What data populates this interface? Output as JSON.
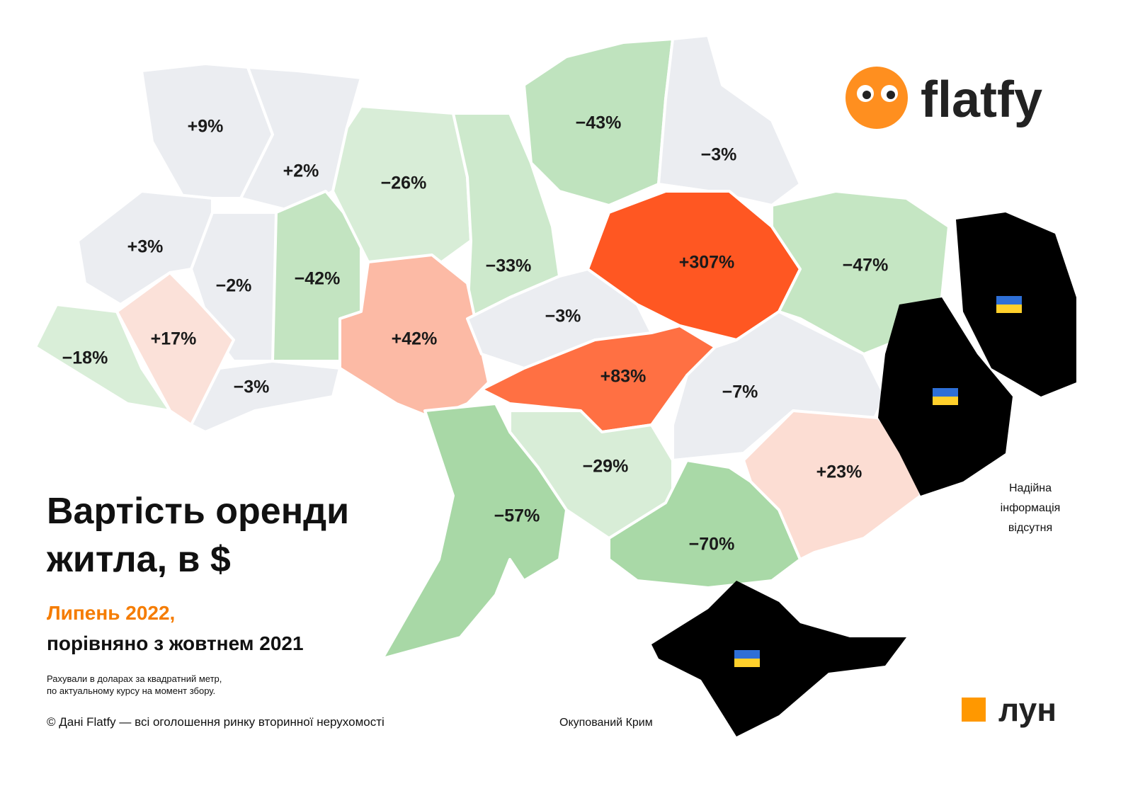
{
  "map": {
    "title_lines": [
      "Вартість оренди",
      "житла, в $"
    ],
    "subtitle_lines": [
      "Липень 2022,",
      "порівняно з жовтнем 2021"
    ],
    "note_lines": [
      "Рахували в доларах за квадратний метр,",
      "по актуальному курсу на момент збору."
    ],
    "source": "© Дані Flatfy — всі оголошення ринку вторинної нерухомості",
    "crimea_label": "Окупований Крим",
    "no_data_lines": [
      "Надійна",
      "інформація",
      "відсутня"
    ],
    "logo_flatfy": "flatfy",
    "logo_lun": "лун",
    "regions": [
      {
        "label": "+9%",
        "color": "#ebedf1"
      },
      {
        "label": "+2%",
        "color": "#ebedf1"
      },
      {
        "label": "+3%",
        "color": "#ebedf1"
      },
      {
        "label": "−2%",
        "color": "#ebedf1"
      },
      {
        "label": "−42%",
        "color": "#c3e4c1"
      },
      {
        "label": "−18%",
        "color": "#d9eed8"
      },
      {
        "label": "+17%",
        "color": "#fbe1d9"
      },
      {
        "label": "−3%",
        "color": "#ebedf1"
      },
      {
        "label": "−26%",
        "color": "#d8edd7"
      },
      {
        "label": "−33%",
        "color": "#cde9cc"
      },
      {
        "label": "−43%",
        "color": "#bfe3be"
      },
      {
        "label": "−3%",
        "color": "#ebedf1"
      },
      {
        "label": "+42%",
        "color": "#fcbaa5"
      },
      {
        "label": "−3%",
        "color": "#ebedf1"
      },
      {
        "label": "+307%",
        "color": "#ff5722"
      },
      {
        "label": "−47%",
        "color": "#c5e6c3"
      },
      {
        "label": "+83%",
        "color": "#ff7043"
      },
      {
        "label": "−7%",
        "color": "#ebedf1"
      },
      {
        "label": "−57%",
        "color": "#a8d8a6"
      },
      {
        "label": "−29%",
        "color": "#d8edd7"
      },
      {
        "label": "−70%",
        "color": "#a9d9a7"
      },
      {
        "label": "+23%",
        "color": "#fcddd3"
      }
    ]
  }
}
